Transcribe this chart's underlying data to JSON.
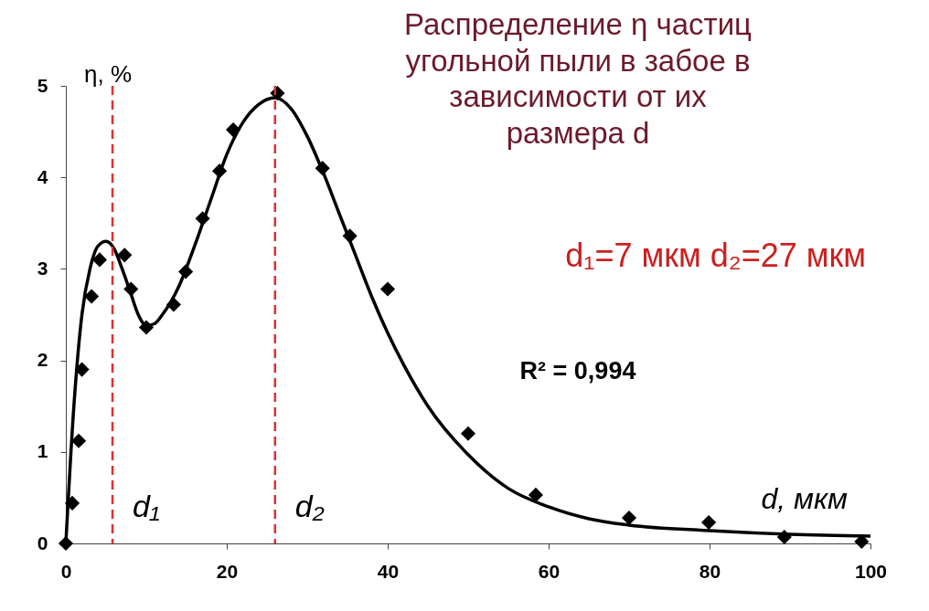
{
  "chart_data": {
    "type": "scatter",
    "title": "Распределение η частиц\nугольной пыли в забое в\nзависимости от их\nразмера d",
    "xlabel": "d, мкм",
    "ylabel": "η, %",
    "xlim": [
      0,
      100
    ],
    "xticks": [
      0,
      20,
      40,
      60,
      80,
      100
    ],
    "ylim": [
      0,
      5
    ],
    "yticks": [
      0,
      1,
      2,
      3,
      4,
      5
    ],
    "grid": false,
    "marker": "diamond",
    "series": [
      {
        "color": "#000000",
        "x": [
          0,
          0.8,
          1.6,
          2.0,
          3.2,
          4.2,
          7.3,
          8.1,
          10,
          13.4,
          14.9,
          17,
          19.1,
          20.8,
          26.3,
          31.9,
          35.3,
          40,
          50,
          58.4,
          70,
          79.9,
          89.3,
          98.9
        ],
        "values": [
          0,
          0.44,
          1.12,
          1.9,
          2.7,
          3.1,
          3.15,
          2.78,
          2.36,
          2.61,
          2.97,
          3.55,
          4.07,
          4.52,
          4.92,
          4.1,
          3.36,
          2.78,
          1.2,
          0.53,
          0.28,
          0.23,
          0.07,
          0.02
        ]
      },
      {
        "type": "line",
        "color": "#000000",
        "marker": "none",
        "line_style": "solid",
        "x": [
          0,
          1,
          2,
          3,
          4,
          5,
          6,
          7,
          8,
          9,
          10,
          11,
          12,
          14,
          16,
          18,
          20,
          22,
          24,
          26,
          28,
          30,
          32,
          34,
          36,
          38,
          40,
          42,
          45,
          50,
          55,
          60,
          65,
          70,
          80,
          90,
          100
        ],
        "values": [
          0,
          1.5,
          2.5,
          3.0,
          3.25,
          3.3,
          3.22,
          3.0,
          2.75,
          2.5,
          2.38,
          2.4,
          2.5,
          2.8,
          3.25,
          3.75,
          4.25,
          4.6,
          4.8,
          4.87,
          4.75,
          4.45,
          4.05,
          3.6,
          3.15,
          2.7,
          2.3,
          1.95,
          1.5,
          0.97,
          0.6,
          0.4,
          0.27,
          0.2,
          0.14,
          0.1,
          0.08
        ]
      }
    ],
    "ref_lines": [
      {
        "axis": "x",
        "value": 5.8,
        "label": "d₁",
        "color": "#e03030",
        "line_style": "dashed"
      },
      {
        "axis": "x",
        "value": 26,
        "label": "d₂",
        "color": "#e03030",
        "line_style": "dashed"
      }
    ],
    "annotations": [
      "d₁=7 мкм   d₂=27 мкм",
      "R² = 0,994"
    ]
  }
}
